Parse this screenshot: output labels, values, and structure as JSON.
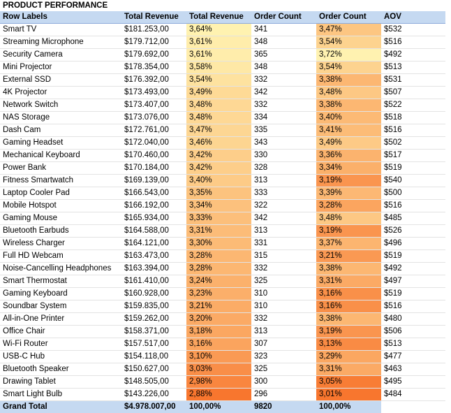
{
  "title": "PRODUCT PERFORMANCE",
  "headers": [
    "Row Labels",
    "Total Revenue",
    "Total Revenue",
    "Order Count",
    "Order Count",
    "AOV"
  ],
  "rows": [
    [
      "Smart TV",
      "$181.253,00",
      "3,64%",
      "341",
      "3,47%",
      "$532"
    ],
    [
      "Streaming Microphone",
      "$179.712,00",
      "3,61%",
      "348",
      "3,54%",
      "$516"
    ],
    [
      "Security Camera",
      "$179.692,00",
      "3,61%",
      "365",
      "3,72%",
      "$492"
    ],
    [
      "Mini Projector",
      "$178.354,00",
      "3,58%",
      "348",
      "3,54%",
      "$513"
    ],
    [
      "External SSD",
      "$176.392,00",
      "3,54%",
      "332",
      "3,38%",
      "$531"
    ],
    [
      "4K Projector",
      "$173.493,00",
      "3,49%",
      "342",
      "3,48%",
      "$507"
    ],
    [
      "Network Switch",
      "$173.407,00",
      "3,48%",
      "332",
      "3,38%",
      "$522"
    ],
    [
      "NAS Storage",
      "$173.076,00",
      "3,48%",
      "334",
      "3,40%",
      "$518"
    ],
    [
      "Dash Cam",
      "$172.761,00",
      "3,47%",
      "335",
      "3,41%",
      "$516"
    ],
    [
      "Gaming Headset",
      "$172.040,00",
      "3,46%",
      "343",
      "3,49%",
      "$502"
    ],
    [
      "Mechanical Keyboard",
      "$170.460,00",
      "3,42%",
      "330",
      "3,36%",
      "$517"
    ],
    [
      "Power Bank",
      "$170.184,00",
      "3,42%",
      "328",
      "3,34%",
      "$519"
    ],
    [
      "Fitness Smartwatch",
      "$169.139,00",
      "3,40%",
      "313",
      "3,19%",
      "$540"
    ],
    [
      "Laptop Cooler Pad",
      "$166.543,00",
      "3,35%",
      "333",
      "3,39%",
      "$500"
    ],
    [
      "Mobile Hotspot",
      "$166.192,00",
      "3,34%",
      "322",
      "3,28%",
      "$516"
    ],
    [
      "Gaming Mouse",
      "$165.934,00",
      "3,33%",
      "342",
      "3,48%",
      "$485"
    ],
    [
      "Bluetooth Earbuds",
      "$164.588,00",
      "3,31%",
      "313",
      "3,19%",
      "$526"
    ],
    [
      "Wireless Charger",
      "$164.121,00",
      "3,30%",
      "331",
      "3,37%",
      "$496"
    ],
    [
      "Full HD Webcam",
      "$163.473,00",
      "3,28%",
      "315",
      "3,21%",
      "$519"
    ],
    [
      "Noise-Cancelling Headphones",
      "$163.394,00",
      "3,28%",
      "332",
      "3,38%",
      "$492"
    ],
    [
      "Smart Thermostat",
      "$161.410,00",
      "3,24%",
      "325",
      "3,31%",
      "$497"
    ],
    [
      "Gaming Keyboard",
      "$160.928,00",
      "3,23%",
      "310",
      "3,16%",
      "$519"
    ],
    [
      "Soundbar System",
      "$159.835,00",
      "3,21%",
      "310",
      "3,16%",
      "$516"
    ],
    [
      "All-in-One Printer",
      "$159.262,00",
      "3,20%",
      "332",
      "3,38%",
      "$480"
    ],
    [
      "Office Chair",
      "$158.371,00",
      "3,18%",
      "313",
      "3,19%",
      "$506"
    ],
    [
      "Wi-Fi Router",
      "$157.517,00",
      "3,16%",
      "307",
      "3,13%",
      "$513"
    ],
    [
      "USB-C Hub",
      "$154.118,00",
      "3,10%",
      "323",
      "3,29%",
      "$477"
    ],
    [
      "Bluetooth Speaker",
      "$150.627,00",
      "3,03%",
      "325",
      "3,31%",
      "$463"
    ],
    [
      "Drawing Tablet",
      "$148.505,00",
      "2,98%",
      "300",
      "3,05%",
      "$495"
    ],
    [
      "Smart Light Bulb",
      "$143.226,00",
      "2,88%",
      "296",
      "3,01%",
      "$484"
    ]
  ],
  "total": [
    "Grand Total",
    "$4.978.007,00",
    "100,00%",
    "9820",
    "100,00%",
    ""
  ],
  "heat_colors": {
    "high": "#fff2b0",
    "low": "#f8762e",
    "header": "#c5d9f1"
  }
}
